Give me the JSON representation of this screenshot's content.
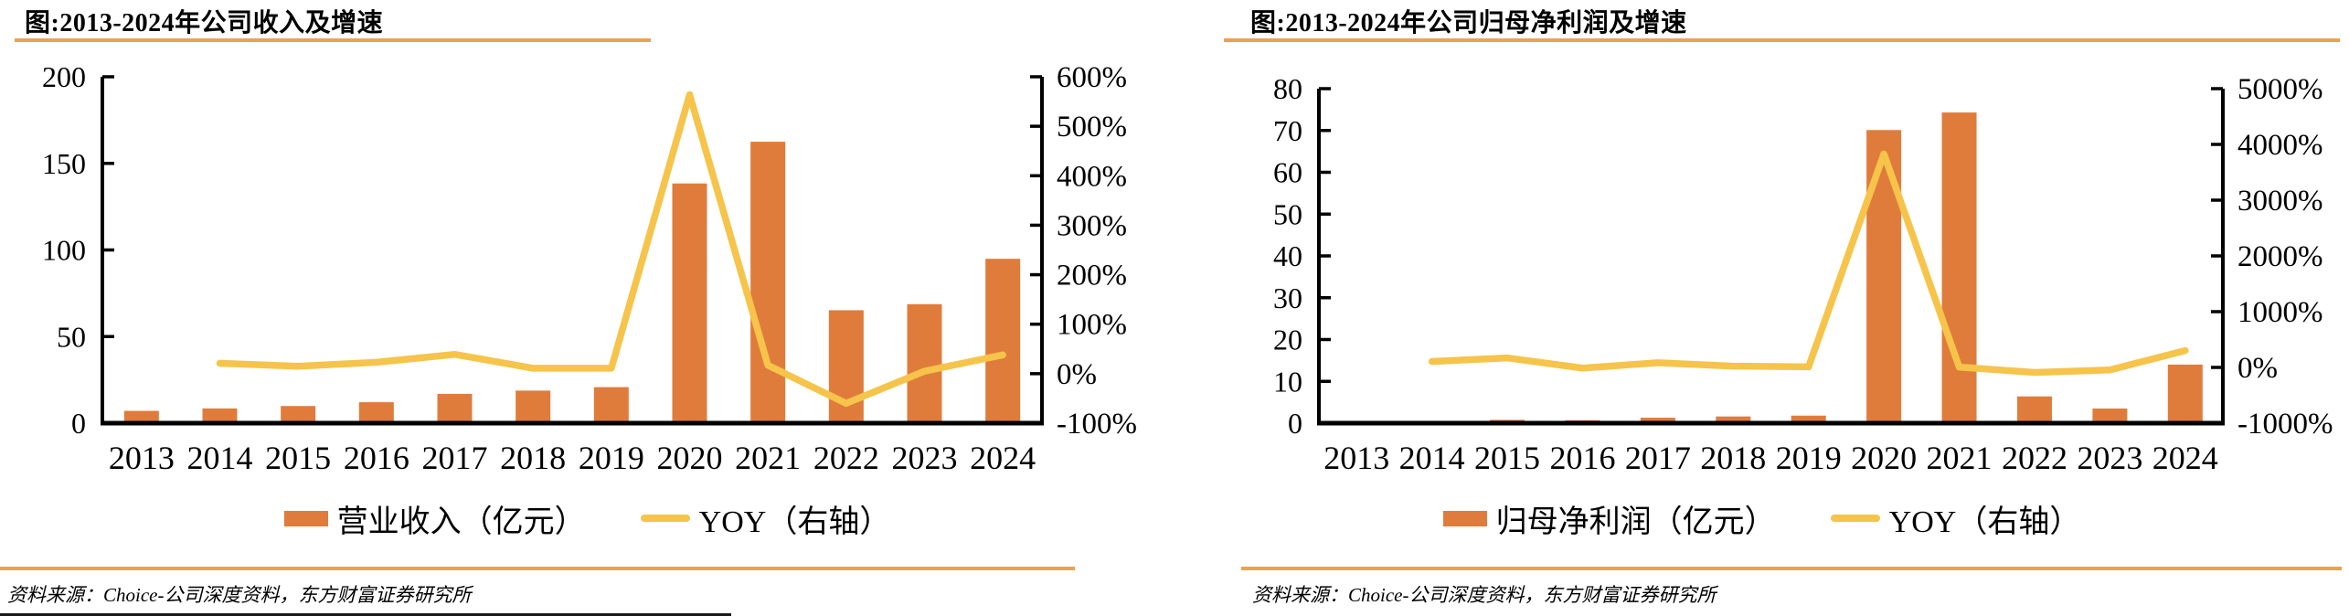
{
  "colors": {
    "bar": "#E07C3B",
    "line": "#F6C44A",
    "rule": "#EDA14F",
    "axis": "#000000"
  },
  "chart_data": [
    {
      "type": "bar",
      "title": "图:2013-2024年公司收入及增速",
      "categories": [
        "2013",
        "2014",
        "2015",
        "2016",
        "2017",
        "2018",
        "2019",
        "2020",
        "2021",
        "2022",
        "2023",
        "2024"
      ],
      "series": [
        {
          "name": "营业收入（亿元）",
          "type": "bar",
          "axis": "left",
          "values": [
            7.1,
            8.5,
            9.9,
            12.1,
            16.9,
            18.8,
            20.8,
            138.4,
            162.5,
            65.2,
            68.7,
            94.9
          ]
        },
        {
          "name": "YOY（右轴）",
          "type": "line",
          "axis": "right",
          "unit": "%",
          "values": [
            null,
            21,
            15,
            23,
            39,
            11,
            11,
            564,
            17,
            -60,
            5,
            38
          ]
        }
      ],
      "left_axis": {
        "min": 0,
        "max": 200,
        "step": 50
      },
      "right_axis": {
        "min": -100,
        "max": 600,
        "step": 100,
        "suffix": "%"
      },
      "grid": false,
      "legend_position": "bottom",
      "source": "资料来源：Choice-公司深度资料，东方财富证券研究所"
    },
    {
      "type": "bar",
      "title": "图:2013-2024年公司归母净利润及增速",
      "categories": [
        "2013",
        "2014",
        "2015",
        "2016",
        "2017",
        "2018",
        "2019",
        "2020",
        "2021",
        "2022",
        "2023",
        "2024"
      ],
      "series": [
        {
          "name": "归母净利润（亿元）",
          "type": "bar",
          "axis": "left",
          "values": [
            0.15,
            0.3,
            0.8,
            0.7,
            1.3,
            1.6,
            1.8,
            70.1,
            74.3,
            6.4,
            3.5,
            14
          ]
        },
        {
          "name": "YOY（右轴）",
          "type": "line",
          "axis": "right",
          "unit": "%",
          "values": [
            null,
            106,
            170,
            -12,
            84,
            23,
            10,
            3830,
            6,
            -91,
            -46,
            302
          ]
        }
      ],
      "left_axis": {
        "min": 0,
        "max": 80,
        "step": 10
      },
      "right_axis": {
        "min": -1000,
        "max": 5000,
        "step": 1000,
        "suffix": "%"
      },
      "grid": false,
      "legend_position": "bottom",
      "source": "资料来源：Choice-公司深度资料，东方财富证券研究所"
    }
  ]
}
